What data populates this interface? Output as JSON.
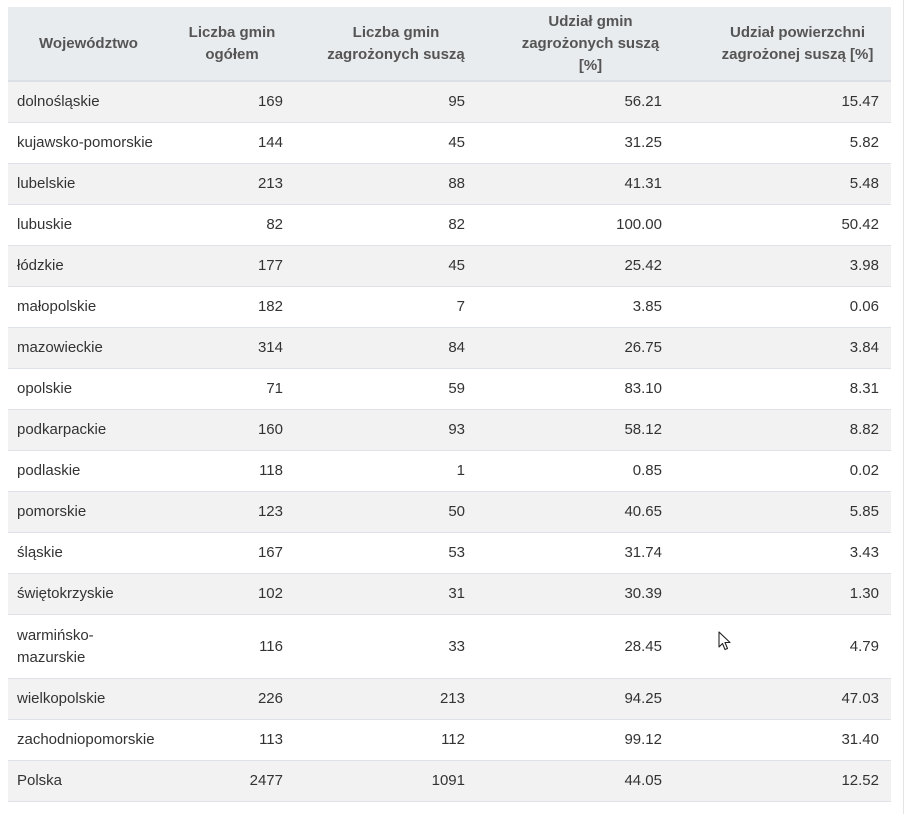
{
  "table": {
    "headers": [
      "Województwo",
      "Liczba gmin ogółem",
      "Liczba gmin zagrożonych suszą",
      "Udział gmin zagrożonych suszą [%]",
      "Udział powierzchni zagrożonej suszą [%]"
    ],
    "rows": [
      {
        "region": "dolnośląskie",
        "total": "169",
        "threatened": "95",
        "share_gminas": "56.21",
        "share_area": "15.47"
      },
      {
        "region": "kujawsko-pomorskie",
        "total": "144",
        "threatened": "45",
        "share_gminas": "31.25",
        "share_area": "5.82"
      },
      {
        "region": "lubelskie",
        "total": "213",
        "threatened": "88",
        "share_gminas": "41.31",
        "share_area": "5.48"
      },
      {
        "region": "lubuskie",
        "total": "82",
        "threatened": "82",
        "share_gminas": "100.00",
        "share_area": "50.42"
      },
      {
        "region": "łódzkie",
        "total": "177",
        "threatened": "45",
        "share_gminas": "25.42",
        "share_area": "3.98"
      },
      {
        "region": "małopolskie",
        "total": "182",
        "threatened": "7",
        "share_gminas": "3.85",
        "share_area": "0.06"
      },
      {
        "region": "mazowieckie",
        "total": "314",
        "threatened": "84",
        "share_gminas": "26.75",
        "share_area": "3.84"
      },
      {
        "region": "opolskie",
        "total": "71",
        "threatened": "59",
        "share_gminas": "83.10",
        "share_area": "8.31"
      },
      {
        "region": "podkarpackie",
        "total": "160",
        "threatened": "93",
        "share_gminas": "58.12",
        "share_area": "8.82"
      },
      {
        "region": "podlaskie",
        "total": "118",
        "threatened": "1",
        "share_gminas": "0.85",
        "share_area": "0.02"
      },
      {
        "region": "pomorskie",
        "total": "123",
        "threatened": "50",
        "share_gminas": "40.65",
        "share_area": "5.85"
      },
      {
        "region": "śląskie",
        "total": "167",
        "threatened": "53",
        "share_gminas": "31.74",
        "share_area": "3.43"
      },
      {
        "region": "świętokrzyskie",
        "total": "102",
        "threatened": "31",
        "share_gminas": "30.39",
        "share_area": "1.30"
      },
      {
        "region": "warmińsko-mazurskie",
        "total": "116",
        "threatened": "33",
        "share_gminas": "28.45",
        "share_area": "4.79"
      },
      {
        "region": "wielkopolskie",
        "total": "226",
        "threatened": "213",
        "share_gminas": "94.25",
        "share_area": "47.03"
      },
      {
        "region": "zachodniopomorskie",
        "total": "113",
        "threatened": "112",
        "share_gminas": "99.12",
        "share_area": "31.40"
      },
      {
        "region": "Polska",
        "total": "2477",
        "threatened": "1091",
        "share_gminas": "44.05",
        "share_area": "12.52"
      }
    ]
  },
  "icons": {
    "cursor": "mouse-pointer-icon"
  },
  "colors": {
    "header_bg": "#e9ecef",
    "stripe_bg": "#f2f2f2",
    "text": "#333333"
  }
}
